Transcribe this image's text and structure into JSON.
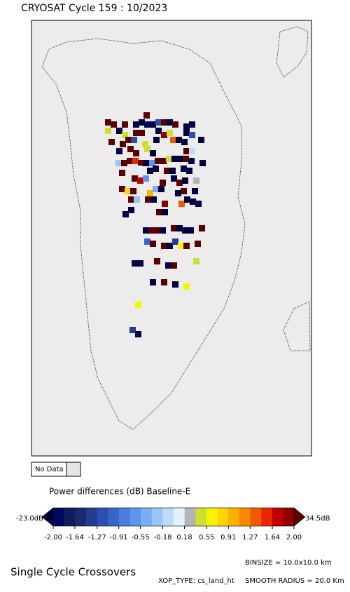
{
  "header": {
    "title": "CRYOSAT Cycle 159 : 10/2023"
  },
  "legend": {
    "no_data": "No Data",
    "title": "Power differences (dB) Baseline-E",
    "range": [
      -2,
      2
    ],
    "under": {
      "value": -23,
      "label": "-23.0dB"
    },
    "over": {
      "value": 34.5,
      "label": "34.5dB"
    },
    "under_color": "#000040",
    "over_color": "#5a0000",
    "no_data_color": "#e6e6e6",
    "colors": [
      "#000860",
      "#101c5c",
      "#1a2a70",
      "#243c90",
      "#2c4eae",
      "#3864c8",
      "#4a7cdc",
      "#5e94ea",
      "#7aaef2",
      "#98c6f6",
      "#bcdcfa",
      "#e2f2fc",
      "#b4b4b4",
      "#cce034",
      "#f8f400",
      "#fcd400",
      "#fcb000",
      "#f88800",
      "#f05a00",
      "#e82800",
      "#c00000",
      "#900000"
    ],
    "ticks": [
      {
        "value": -2,
        "label": "-2.00"
      },
      {
        "value": -1.64,
        "label": "-1.64"
      },
      {
        "value": -1.27,
        "label": "-1.27"
      },
      {
        "value": -0.91,
        "label": "-0.91"
      },
      {
        "value": -0.55,
        "label": "-0.55"
      },
      {
        "value": -0.18,
        "label": "-0.18"
      },
      {
        "value": 0.18,
        "label": "0.18"
      },
      {
        "value": 0.55,
        "label": "0.55"
      },
      {
        "value": 0.91,
        "label": "0.91"
      },
      {
        "value": 1.27,
        "label": "1.27"
      },
      {
        "value": 1.64,
        "label": "1.64"
      },
      {
        "value": 2,
        "label": "2.00"
      }
    ]
  },
  "footer": {
    "title": "Single Cycle Crossovers",
    "binsize": "BINSIZE = 10.0x10.0 km",
    "xop_type": "XOP_TYPE: cs_land_ht",
    "smooth": "SMOOTH RADIUS = 20.0 Km"
  }
}
